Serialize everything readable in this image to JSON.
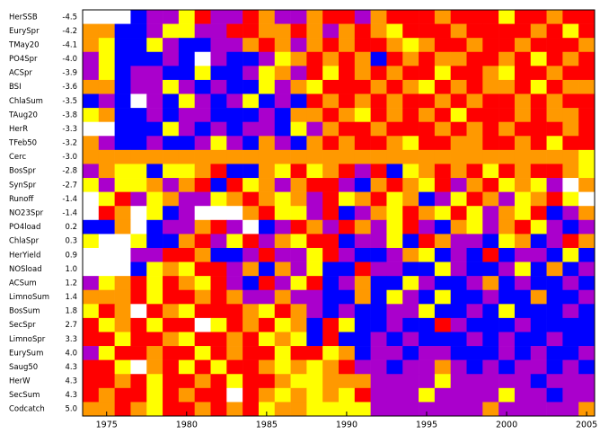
{
  "chart_data": {
    "type": "heatmap",
    "rows": [
      "HerSSB",
      "EurySpr",
      "TMay20",
      "PO4Spr",
      "ACSpr",
      "BSI",
      "ChlaSum",
      "TAug20",
      "HerR",
      "TFeb50",
      "Cerc",
      "BosSpr",
      "SynSpr",
      "Runoff",
      "NO23Spr",
      "PO4load",
      "ChlaSpr",
      "HerYield",
      "NOSload",
      "ACSum",
      "LimnoSum",
      "BosSum",
      "SecSpr",
      "LimnoSpr",
      "EurySum",
      "Saug50",
      "HerW",
      "SecSum",
      "Codcatch"
    ],
    "row_scores": [
      -4.5,
      -4.2,
      -4.1,
      {
        "value": -4,
        "label": "-4.0"
      },
      -3.9,
      -3.6,
      -3.5,
      -3.8,
      -3.3,
      -3.2,
      {
        "value": -3,
        "label": "-3.0"
      },
      -2.8,
      -2.7,
      -1.4,
      -1.4,
      0.2,
      0.3,
      0.9,
      {
        "value": 1,
        "label": "1.0"
      },
      1.2,
      1.4,
      1.8,
      2.7,
      3.3,
      {
        "value": 4,
        "label": "4.0"
      },
      4.3,
      4.3,
      4.3,
      {
        "value": 5,
        "label": "5.0"
      }
    ],
    "x": [
      1974,
      1975,
      1976,
      1977,
      1978,
      1979,
      1980,
      1981,
      1982,
      1983,
      1984,
      1985,
      1986,
      1987,
      1988,
      1989,
      1990,
      1991,
      1992,
      1993,
      1994,
      1995,
      1996,
      1997,
      1998,
      1999,
      2000,
      2001,
      2002,
      2003,
      2004,
      2005
    ],
    "xlim": [
      1973.5,
      2005.5
    ],
    "xticks": [
      1975,
      1980,
      1985,
      1990,
      1995,
      2000,
      2005
    ],
    "colors": [
      "#ffffff",
      "#ffff00",
      "#ff9900",
      "#ff0000",
      "#aa00cc",
      "#0000ff"
    ],
    "matrix": [
      [
        0,
        0,
        0,
        5,
        4,
        4,
        1,
        3,
        4,
        4,
        3,
        2,
        4,
        4,
        2,
        3,
        3,
        4,
        2,
        3,
        3,
        3,
        2,
        3,
        3,
        3,
        1,
        3,
        3,
        2,
        3,
        3
      ],
      [
        2,
        2,
        5,
        5,
        4,
        1,
        1,
        4,
        4,
        3,
        3,
        2,
        2,
        3,
        2,
        4,
        2,
        3,
        2,
        1,
        3,
        3,
        3,
        2,
        3,
        3,
        3,
        3,
        2,
        3,
        1,
        3
      ],
      [
        2,
        1,
        5,
        5,
        1,
        4,
        5,
        5,
        4,
        4,
        2,
        3,
        2,
        4,
        2,
        3,
        2,
        3,
        3,
        2,
        1,
        2,
        3,
        3,
        2,
        3,
        3,
        2,
        3,
        3,
        3,
        2
      ],
      [
        4,
        1,
        5,
        5,
        5,
        4,
        5,
        0,
        4,
        5,
        5,
        4,
        1,
        2,
        3,
        2,
        3,
        2,
        5,
        3,
        2,
        3,
        2,
        2,
        3,
        3,
        2,
        3,
        1,
        3,
        2,
        3
      ],
      [
        4,
        1,
        5,
        4,
        4,
        5,
        5,
        1,
        5,
        5,
        4,
        1,
        2,
        4,
        3,
        1,
        3,
        2,
        3,
        2,
        3,
        3,
        1,
        3,
        3,
        2,
        1,
        3,
        3,
        2,
        3,
        3
      ],
      [
        2,
        2,
        5,
        4,
        4,
        1,
        4,
        5,
        4,
        5,
        5,
        1,
        4,
        2,
        1,
        3,
        3,
        3,
        2,
        3,
        2,
        1,
        3,
        2,
        3,
        2,
        2,
        3,
        1,
        3,
        2,
        2
      ],
      [
        5,
        4,
        5,
        0,
        4,
        5,
        1,
        4,
        5,
        4,
        1,
        5,
        4,
        5,
        3,
        2,
        3,
        2,
        3,
        2,
        3,
        3,
        2,
        3,
        2,
        3,
        3,
        2,
        3,
        2,
        3,
        3
      ],
      [
        1,
        2,
        5,
        5,
        4,
        5,
        4,
        4,
        5,
        5,
        5,
        4,
        5,
        2,
        2,
        3,
        2,
        1,
        3,
        2,
        3,
        2,
        3,
        1,
        3,
        3,
        3,
        2,
        3,
        2,
        2,
        3
      ],
      [
        0,
        0,
        5,
        5,
        5,
        1,
        4,
        5,
        4,
        5,
        4,
        4,
        5,
        1,
        4,
        2,
        3,
        3,
        2,
        3,
        3,
        3,
        2,
        3,
        2,
        3,
        2,
        3,
        3,
        3,
        2,
        3
      ],
      [
        2,
        4,
        5,
        5,
        4,
        5,
        5,
        4,
        1,
        4,
        5,
        2,
        4,
        5,
        2,
        3,
        2,
        3,
        3,
        2,
        1,
        3,
        3,
        2,
        2,
        3,
        3,
        2,
        3,
        1,
        3,
        3
      ],
      [
        2,
        2,
        2,
        2,
        2,
        2,
        2,
        2,
        2,
        2,
        2,
        2,
        2,
        2,
        2,
        2,
        2,
        2,
        2,
        2,
        2,
        2,
        2,
        2,
        2,
        2,
        2,
        2,
        2,
        2,
        2,
        1
      ],
      [
        4,
        2,
        1,
        1,
        5,
        1,
        1,
        2,
        3,
        5,
        5,
        2,
        1,
        3,
        1,
        2,
        3,
        4,
        3,
        5,
        1,
        2,
        3,
        2,
        3,
        1,
        3,
        2,
        3,
        3,
        2,
        1
      ],
      [
        1,
        4,
        1,
        1,
        2,
        4,
        2,
        3,
        5,
        3,
        1,
        2,
        4,
        2,
        3,
        3,
        4,
        5,
        2,
        3,
        2,
        1,
        3,
        4,
        2,
        3,
        1,
        2,
        1,
        4,
        0,
        2
      ],
      [
        0,
        1,
        3,
        4,
        1,
        2,
        4,
        4,
        1,
        2,
        3,
        2,
        1,
        2,
        4,
        3,
        1,
        2,
        3,
        1,
        2,
        5,
        4,
        1,
        3,
        2,
        4,
        1,
        2,
        3,
        1,
        0
      ],
      [
        0,
        3,
        2,
        0,
        1,
        5,
        4,
        0,
        0,
        0,
        2,
        3,
        1,
        1,
        4,
        3,
        5,
        4,
        2,
        1,
        3,
        2,
        1,
        3,
        1,
        4,
        2,
        1,
        3,
        5,
        4,
        2
      ],
      [
        5,
        5,
        2,
        0,
        5,
        4,
        4,
        2,
        3,
        4,
        0,
        5,
        4,
        3,
        2,
        4,
        3,
        2,
        4,
        1,
        3,
        4,
        5,
        2,
        1,
        4,
        2,
        3,
        1,
        4,
        5,
        4
      ],
      [
        1,
        0,
        0,
        1,
        5,
        5,
        2,
        3,
        4,
        1,
        3,
        4,
        2,
        1,
        3,
        3,
        5,
        4,
        4,
        1,
        5,
        3,
        2,
        4,
        4,
        5,
        1,
        2,
        5,
        4,
        3,
        2
      ],
      [
        0,
        0,
        0,
        4,
        4,
        3,
        3,
        2,
        5,
        5,
        4,
        3,
        4,
        4,
        1,
        3,
        4,
        5,
        5,
        4,
        2,
        1,
        5,
        4,
        5,
        3,
        5,
        4,
        4,
        5,
        1,
        5
      ],
      [
        0,
        0,
        0,
        5,
        1,
        2,
        1,
        3,
        3,
        4,
        2,
        5,
        2,
        4,
        1,
        5,
        5,
        3,
        4,
        4,
        5,
        5,
        1,
        4,
        5,
        5,
        4,
        1,
        5,
        2,
        5,
        4
      ],
      [
        4,
        1,
        2,
        3,
        1,
        3,
        2,
        1,
        3,
        4,
        5,
        3,
        4,
        1,
        3,
        5,
        4,
        2,
        5,
        5,
        1,
        4,
        5,
        5,
        4,
        2,
        5,
        4,
        5,
        5,
        4,
        5
      ],
      [
        2,
        2,
        2,
        3,
        1,
        3,
        3,
        2,
        3,
        2,
        4,
        4,
        2,
        4,
        4,
        5,
        5,
        2,
        5,
        1,
        4,
        5,
        1,
        5,
        5,
        4,
        5,
        5,
        2,
        5,
        5,
        4
      ],
      [
        1,
        3,
        2,
        0,
        3,
        2,
        1,
        3,
        3,
        3,
        2,
        1,
        3,
        2,
        4,
        5,
        4,
        5,
        5,
        4,
        4,
        1,
        5,
        5,
        4,
        5,
        1,
        5,
        5,
        5,
        4,
        5
      ],
      [
        3,
        1,
        2,
        3,
        1,
        3,
        3,
        0,
        1,
        3,
        2,
        3,
        1,
        2,
        5,
        3,
        1,
        5,
        5,
        4,
        5,
        5,
        3,
        4,
        5,
        5,
        5,
        4,
        5,
        5,
        5,
        5
      ],
      [
        3,
        3,
        1,
        3,
        3,
        2,
        1,
        3,
        3,
        2,
        3,
        1,
        2,
        1,
        5,
        3,
        5,
        5,
        4,
        5,
        4,
        5,
        5,
        5,
        4,
        5,
        4,
        5,
        5,
        4,
        5,
        5
      ],
      [
        4,
        1,
        3,
        3,
        2,
        3,
        3,
        1,
        3,
        2,
        3,
        3,
        1,
        3,
        3,
        1,
        2,
        5,
        4,
        4,
        5,
        4,
        4,
        5,
        5,
        5,
        4,
        5,
        4,
        5,
        5,
        4
      ],
      [
        3,
        3,
        1,
        0,
        2,
        3,
        1,
        3,
        1,
        3,
        3,
        2,
        1,
        2,
        1,
        2,
        3,
        4,
        4,
        5,
        4,
        4,
        2,
        4,
        5,
        4,
        5,
        4,
        4,
        5,
        4,
        5
      ],
      [
        3,
        3,
        2,
        3,
        1,
        3,
        3,
        2,
        3,
        1,
        3,
        3,
        2,
        1,
        1,
        2,
        2,
        2,
        4,
        4,
        4,
        4,
        1,
        4,
        4,
        4,
        4,
        4,
        5,
        4,
        4,
        4
      ],
      [
        3,
        2,
        3,
        3,
        1,
        3,
        2,
        3,
        3,
        0,
        3,
        2,
        1,
        2,
        1,
        2,
        1,
        3,
        4,
        4,
        4,
        1,
        4,
        4,
        4,
        4,
        1,
        4,
        4,
        5,
        4,
        4
      ],
      [
        2,
        2,
        3,
        2,
        1,
        3,
        3,
        2,
        3,
        2,
        3,
        1,
        2,
        2,
        1,
        1,
        1,
        1,
        4,
        4,
        4,
        4,
        4,
        4,
        4,
        2,
        4,
        4,
        4,
        4,
        4,
        2
      ]
    ]
  }
}
